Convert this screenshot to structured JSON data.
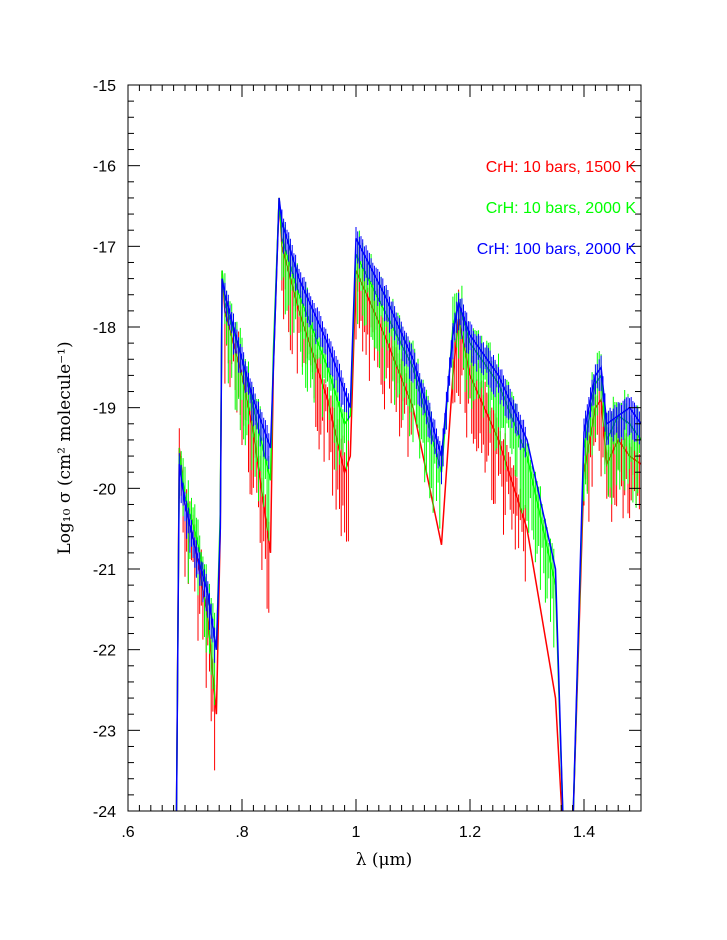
{
  "chart_data": {
    "type": "line",
    "title": "",
    "xlabel": "λ (μm)",
    "ylabel": "Log₁₀ σ (cm² molecule⁻¹)",
    "xlim": [
      0.6,
      1.5
    ],
    "ylim": [
      -24,
      -15
    ],
    "x_ticks": [
      ".6",
      ".8",
      "1",
      "1.2",
      "1.4"
    ],
    "y_ticks": [
      "-15",
      "-16",
      "-17",
      "-18",
      "-19",
      "-20",
      "-21",
      "-22",
      "-23",
      "-24"
    ],
    "grid": false,
    "legend_position": "top-right",
    "series": [
      {
        "name": "CrH: 10 bars, 1500 K",
        "color": "#ff0000",
        "x": [
          0.685,
          0.69,
          0.7,
          0.72,
          0.74,
          0.755,
          0.762,
          0.765,
          0.77,
          0.8,
          0.82,
          0.85,
          0.855,
          0.865,
          0.87,
          0.9,
          0.95,
          0.98,
          0.99,
          1.0,
          1.05,
          1.1,
          1.15,
          1.17,
          1.18,
          1.2,
          1.25,
          1.3,
          1.35,
          1.365,
          1.38,
          1.4,
          1.42,
          1.43,
          1.44,
          1.46,
          1.48,
          1.5
        ],
        "y": [
          -24.0,
          -19.5,
          -20.2,
          -20.8,
          -21.6,
          -22.8,
          -20.5,
          -17.3,
          -17.8,
          -18.6,
          -19.3,
          -20.8,
          -18.5,
          -16.4,
          -17.0,
          -17.8,
          -18.9,
          -19.8,
          -19.6,
          -17.3,
          -18.1,
          -19.0,
          -20.7,
          -18.6,
          -17.9,
          -18.6,
          -19.4,
          -20.5,
          -22.6,
          -24.5,
          -24.3,
          -19.8,
          -19.0,
          -18.9,
          -19.7,
          -19.4,
          -19.6,
          -19.7
        ]
      },
      {
        "name": "CrH: 10 bars, 2000 K",
        "color": "#00ff00",
        "x": [
          0.685,
          0.69,
          0.7,
          0.72,
          0.74,
          0.755,
          0.762,
          0.765,
          0.77,
          0.8,
          0.82,
          0.85,
          0.855,
          0.865,
          0.87,
          0.9,
          0.95,
          0.98,
          0.99,
          1.0,
          1.05,
          1.1,
          1.15,
          1.17,
          1.18,
          1.2,
          1.25,
          1.3,
          1.35,
          1.365,
          1.38,
          1.4,
          1.42,
          1.43,
          1.44,
          1.46,
          1.48,
          1.5
        ],
        "y": [
          -24.0,
          -19.6,
          -20.1,
          -20.6,
          -21.3,
          -22.0,
          -20.3,
          -17.3,
          -17.7,
          -18.4,
          -19.0,
          -19.9,
          -18.3,
          -16.4,
          -16.9,
          -17.6,
          -18.5,
          -19.2,
          -19.1,
          -17.1,
          -17.8,
          -18.5,
          -19.8,
          -18.0,
          -17.7,
          -18.2,
          -18.7,
          -19.6,
          -21.2,
          -24.5,
          -24.3,
          -19.5,
          -18.7,
          -18.6,
          -19.4,
          -19.1,
          -19.2,
          -19.4
        ]
      },
      {
        "name": "CrH: 100 bars, 2000 K",
        "color": "#0000ff",
        "x": [
          0.685,
          0.69,
          0.7,
          0.72,
          0.74,
          0.755,
          0.762,
          0.765,
          0.77,
          0.8,
          0.82,
          0.85,
          0.855,
          0.865,
          0.87,
          0.9,
          0.95,
          0.98,
          0.99,
          1.0,
          1.05,
          1.1,
          1.15,
          1.17,
          1.18,
          1.2,
          1.25,
          1.3,
          1.35,
          1.365,
          1.38,
          1.4,
          1.42,
          1.43,
          1.44,
          1.46,
          1.48,
          1.5
        ],
        "y": [
          -24.0,
          -19.7,
          -20.2,
          -20.8,
          -21.3,
          -22.0,
          -20.5,
          -17.4,
          -17.6,
          -18.4,
          -18.9,
          -19.5,
          -18.5,
          -16.4,
          -16.7,
          -17.4,
          -18.2,
          -18.8,
          -19.0,
          -16.9,
          -17.6,
          -18.4,
          -19.6,
          -18.1,
          -17.7,
          -18.1,
          -18.6,
          -19.4,
          -21.0,
          -24.5,
          -24.3,
          -19.3,
          -18.6,
          -18.5,
          -19.2,
          -19.1,
          -19.0,
          -19.2
        ]
      }
    ]
  }
}
